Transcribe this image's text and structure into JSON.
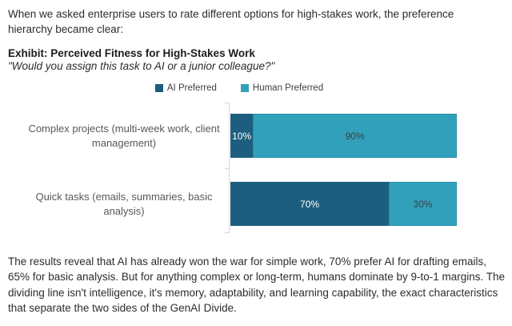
{
  "page": {
    "intro": "When we asked enterprise users to rate different options for high-stakes work, the preference hierarchy became clear:",
    "conclusion": "The results reveal that AI has already won the war for simple work, 70% prefer AI for drafting emails, 65% for basic analysis. But for anything complex or long-term, humans dominate by 9-to-1 margins. The dividing line isn't intelligence, it's memory, adaptability, and learning capability, the exact characteristics that separate the two sides of the GenAI Divide."
  },
  "chart_data": {
    "type": "bar",
    "orientation": "horizontal",
    "stacked": true,
    "title": "Exhibit: Perceived Fitness for High-Stakes Work",
    "subtitle": "\"Would you assign this task to AI or a junior colleague?\"",
    "categories": [
      "Complex projects (multi-week work, client management)",
      "Quick tasks (emails, summaries, basic analysis)"
    ],
    "series": [
      {
        "name": "AI Preferred",
        "color": "#1d5e7e",
        "values": [
          10,
          70
        ]
      },
      {
        "name": "Human Preferred",
        "color": "#31a1bb",
        "values": [
          90,
          30
        ]
      }
    ],
    "data_labels": [
      [
        "10%",
        "70%"
      ],
      [
        "90%",
        "30%"
      ]
    ],
    "xlim": [
      0,
      100
    ],
    "legend_position": "top-center",
    "grid": false,
    "axis_color": "#d9d9d9",
    "category_label_color": "#55595c",
    "value_label_color_on_dark": "#ffffff",
    "value_label_color_on_light": "#3e3e3e"
  }
}
